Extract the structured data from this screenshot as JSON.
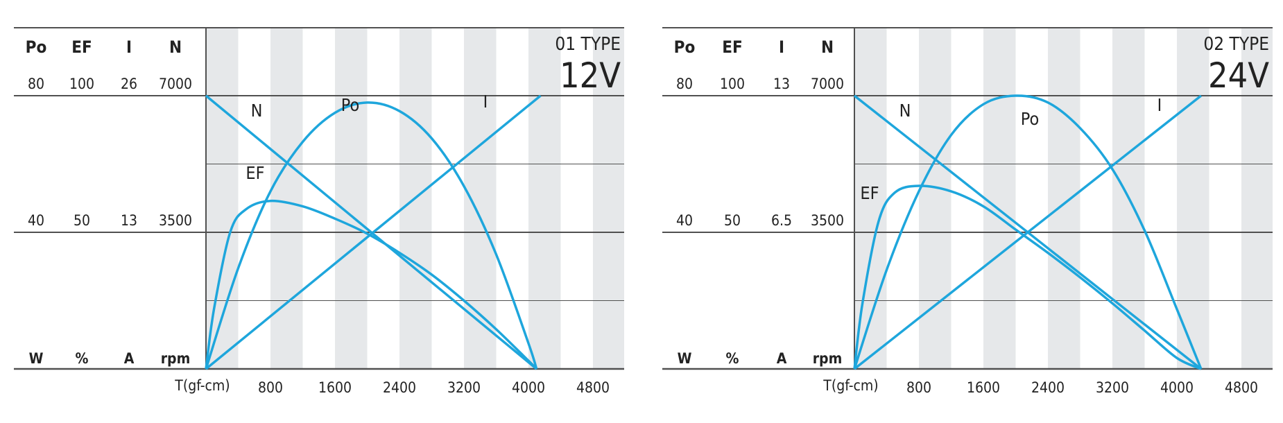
{
  "colors": {
    "curve": "#1ea6dc",
    "axis_line": "#505050",
    "stripe": "#e6e8ea",
    "text": "#222222"
  },
  "chart_data": [
    {
      "type": "line",
      "title": "01 TYPE",
      "subtitle": "12V",
      "xlabel": "T(gf-cm)",
      "x_ticks": [
        800,
        1600,
        2400,
        3200,
        4000,
        4800
      ],
      "xlim": [
        0,
        5200
      ],
      "columns": {
        "headers": [
          "Po",
          "EF",
          "I",
          "N"
        ],
        "max_labels": [
          "80",
          "100",
          "26",
          "7000"
        ],
        "mid_labels": [
          "40",
          "50",
          "13",
          "3500"
        ],
        "units": [
          "W",
          "%",
          "A",
          "rpm"
        ]
      },
      "grid": true,
      "series": [
        {
          "name": "N",
          "x": [
            0,
            4100
          ],
          "values": [
            7000,
            0
          ],
          "unit": "rpm"
        },
        {
          "name": "I",
          "x": [
            0,
            4150
          ],
          "values": [
            0,
            26
          ],
          "unit": "A"
        },
        {
          "name": "Po",
          "x": [
            0,
            400,
            800,
            1200,
            1600,
            2000,
            2400,
            2800,
            3200,
            3600,
            4000,
            4100
          ],
          "values": [
            0,
            29.5,
            52,
            66.5,
            75,
            78,
            75.5,
            67.5,
            53.5,
            33.5,
            7.5,
            0
          ],
          "unit": "W"
        },
        {
          "name": "EF",
          "x": [
            0,
            100,
            300,
            500,
            800,
            1200,
            1600,
            2000,
            2400,
            2800,
            3200,
            3600,
            4000,
            4100
          ],
          "values": [
            0,
            22,
            50,
            58.5,
            61.5,
            59.5,
            55,
            49.5,
            42.5,
            34.5,
            25,
            14.5,
            3,
            0
          ],
          "unit": "%"
        }
      ],
      "labels": {
        "N": "N",
        "Po": "Po",
        "I": "I",
        "EF": "EF"
      }
    },
    {
      "type": "line",
      "title": "02 TYPE",
      "subtitle": "24V",
      "xlabel": "T(gf-cm)",
      "x_ticks": [
        800,
        1600,
        2400,
        3200,
        4000,
        4800
      ],
      "xlim": [
        0,
        5200
      ],
      "columns": {
        "headers": [
          "Po",
          "EF",
          "I",
          "N"
        ],
        "max_labels": [
          "80",
          "100",
          "13",
          "7000"
        ],
        "mid_labels": [
          "40",
          "50",
          "6.5",
          "3500"
        ],
        "units": [
          "W",
          "%",
          "A",
          "rpm"
        ]
      },
      "grid": true,
      "series": [
        {
          "name": "N",
          "x": [
            0,
            4300
          ],
          "values": [
            7000,
            0
          ],
          "unit": "rpm"
        },
        {
          "name": "I",
          "x": [
            0,
            4300
          ],
          "values": [
            0,
            13
          ],
          "unit": "A"
        },
        {
          "name": "Po",
          "x": [
            0,
            400,
            800,
            1200,
            1600,
            2000,
            2400,
            2800,
            3200,
            3600,
            4000,
            4300
          ],
          "values": [
            0,
            29,
            52,
            68.5,
            77.5,
            80,
            78,
            70.5,
            58.5,
            40.5,
            17.5,
            0
          ],
          "unit": "W"
        },
        {
          "name": "EF",
          "x": [
            0,
            100,
            300,
            500,
            800,
            1200,
            1600,
            2000,
            2400,
            2800,
            3200,
            3600,
            4000,
            4300
          ],
          "values": [
            0,
            24,
            54,
            64.5,
            67,
            65,
            59.5,
            51,
            42.5,
            33.5,
            24,
            14,
            4,
            0
          ],
          "unit": "%"
        }
      ],
      "labels": {
        "N": "N",
        "Po": "Po",
        "I": "I",
        "EF": "EF"
      }
    }
  ]
}
